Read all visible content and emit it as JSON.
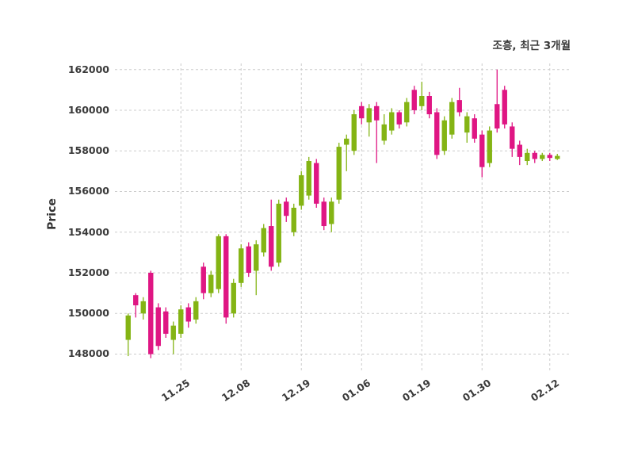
{
  "chart_data": {
    "type": "candlestick",
    "title": "조흥, 최근 3개월",
    "ylabel": "Price",
    "ylim": [
      147200,
      162300
    ],
    "y_ticks": [
      148000,
      150000,
      152000,
      154000,
      156000,
      158000,
      160000,
      162000
    ],
    "x_tick_labels": [
      "11.25",
      "12.08",
      "12.19",
      "01.06",
      "01.19",
      "01.30",
      "02.12"
    ],
    "x_tick_indices": [
      7,
      15,
      23,
      31,
      39,
      47,
      56
    ],
    "up_color": "#84b414",
    "down_color": "#df1683",
    "grid_color": "#cccccc",
    "text_color": "#3a3a3a",
    "candles_format": [
      "open",
      "high",
      "low",
      "close"
    ],
    "candles": [
      [
        148700,
        150000,
        147900,
        149900
      ],
      [
        150900,
        151000,
        149800,
        150400
      ],
      [
        150000,
        150800,
        149700,
        150600
      ],
      [
        152000,
        152100,
        147800,
        148000
      ],
      [
        150300,
        150500,
        148200,
        148400
      ],
      [
        150100,
        150300,
        148800,
        149000
      ],
      [
        148700,
        149600,
        148000,
        149400
      ],
      [
        149000,
        150400,
        148800,
        150200
      ],
      [
        150300,
        150500,
        149300,
        149600
      ],
      [
        149700,
        150800,
        149500,
        150600
      ],
      [
        152300,
        152500,
        150700,
        151000
      ],
      [
        151000,
        152100,
        150800,
        151900
      ],
      [
        151200,
        153900,
        151000,
        153800
      ],
      [
        153800,
        153900,
        149500,
        149800
      ],
      [
        150000,
        151700,
        149800,
        151500
      ],
      [
        151500,
        153400,
        151300,
        153200
      ],
      [
        153300,
        153500,
        151800,
        152000
      ],
      [
        152100,
        153600,
        150900,
        153400
      ],
      [
        153000,
        154400,
        152800,
        154200
      ],
      [
        154300,
        155600,
        152100,
        152300
      ],
      [
        152500,
        155600,
        152300,
        155400
      ],
      [
        155500,
        155700,
        154500,
        154800
      ],
      [
        154000,
        155400,
        153800,
        155200
      ],
      [
        155300,
        157000,
        155100,
        156800
      ],
      [
        155800,
        157700,
        155600,
        157500
      ],
      [
        157400,
        157600,
        155200,
        155400
      ],
      [
        155500,
        155700,
        154100,
        154300
      ],
      [
        154400,
        155700,
        154000,
        155500
      ],
      [
        155600,
        158400,
        155400,
        158200
      ],
      [
        158300,
        158800,
        157000,
        158600
      ],
      [
        158000,
        160000,
        157800,
        159800
      ],
      [
        160200,
        160400,
        159300,
        159600
      ],
      [
        159400,
        160300,
        158700,
        160100
      ],
      [
        160200,
        160400,
        157400,
        159500
      ],
      [
        158500,
        159800,
        158300,
        159300
      ],
      [
        159000,
        160100,
        158800,
        159900
      ],
      [
        159900,
        160000,
        159100,
        159300
      ],
      [
        159400,
        160600,
        159200,
        160400
      ],
      [
        161000,
        161200,
        159800,
        160000
      ],
      [
        160200,
        161400,
        160000,
        160700
      ],
      [
        160700,
        160900,
        159600,
        159800
      ],
      [
        159900,
        160100,
        157600,
        157800
      ],
      [
        158000,
        159700,
        157800,
        159500
      ],
      [
        158800,
        160600,
        158600,
        160400
      ],
      [
        160500,
        161100,
        159700,
        159900
      ],
      [
        158900,
        159900,
        158400,
        159700
      ],
      [
        159600,
        159800,
        158400,
        158600
      ],
      [
        158800,
        159000,
        156700,
        157200
      ],
      [
        157400,
        159200,
        157200,
        159000
      ],
      [
        160300,
        162000,
        158900,
        159100
      ],
      [
        161000,
        161200,
        159100,
        159300
      ],
      [
        159200,
        159400,
        157700,
        158100
      ],
      [
        158300,
        158500,
        157300,
        157700
      ],
      [
        157500,
        158100,
        157300,
        157900
      ],
      [
        157900,
        158000,
        157400,
        157600
      ],
      [
        157600,
        157900,
        157500,
        157800
      ],
      [
        157800,
        157900,
        157500,
        157650
      ],
      [
        157600,
        157850,
        157550,
        157750
      ]
    ],
    "grid": true,
    "grid_style": "dashed",
    "legend": "none"
  }
}
